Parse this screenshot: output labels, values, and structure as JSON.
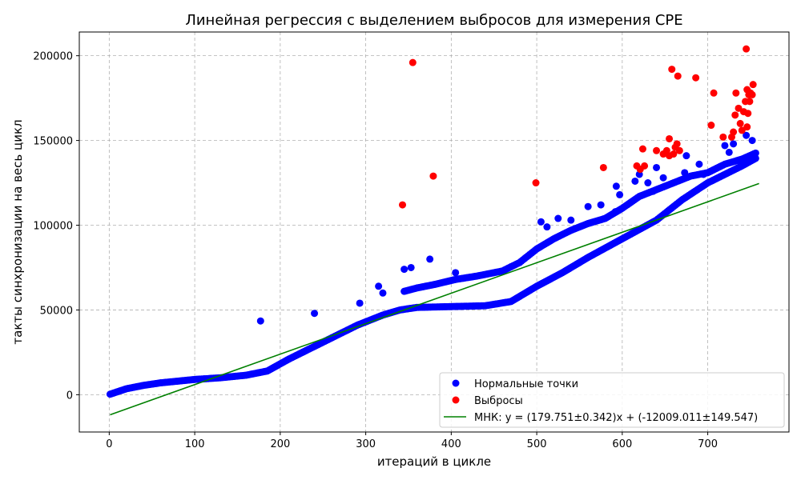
{
  "chart_data": {
    "type": "scatter",
    "title": "Линейная регрессия с выделением выбросов для измерения CPE",
    "xlabel": "итераций в цикле",
    "ylabel": "такты синхронизации на весь цикл",
    "xlim": [
      -35,
      795
    ],
    "ylim": [
      -22000,
      214000
    ],
    "xticks": [
      0,
      100,
      200,
      300,
      400,
      500,
      600,
      700
    ],
    "yticks": [
      0,
      50000,
      100000,
      150000,
      200000
    ],
    "grid": true,
    "legend_position": "bottom-right",
    "series": [
      {
        "name": "Нормальные точки",
        "color": "#0000ff",
        "marker": "circle",
        "segments": [
          [
            [
              1,
              300
            ],
            [
              20,
              3500
            ],
            [
              40,
              5500
            ],
            [
              60,
              7000
            ],
            [
              80,
              8000
            ],
            [
              100,
              9000
            ],
            [
              130,
              10000
            ],
            [
              160,
              11500
            ],
            [
              185,
              14000
            ],
            [
              210,
              21000
            ],
            [
              250,
              31000
            ],
            [
              290,
              41000
            ],
            [
              320,
              47000
            ],
            [
              340,
              50000
            ],
            [
              360,
              51500
            ],
            [
              400,
              52000
            ],
            [
              440,
              52500
            ],
            [
              470,
              55000
            ],
            [
              500,
              64000
            ],
            [
              530,
              72000
            ],
            [
              560,
              81000
            ],
            [
              600,
              92000
            ],
            [
              640,
              103000
            ],
            [
              670,
              115000
            ],
            [
              700,
              125000
            ],
            [
              740,
              135000
            ],
            [
              758,
              140000
            ]
          ],
          [
            [
              345,
              61000
            ],
            [
              360,
              63000
            ],
            [
              380,
              65000
            ],
            [
              405,
              68000
            ],
            [
              430,
              70000
            ],
            [
              460,
              73000
            ],
            [
              480,
              78000
            ],
            [
              500,
              86000
            ],
            [
              520,
              92000
            ],
            [
              540,
              97000
            ],
            [
              560,
              101000
            ],
            [
              580,
              104000
            ],
            [
              600,
              110000
            ],
            [
              620,
              117000
            ],
            [
              640,
              121000
            ],
            [
              660,
              125000
            ],
            [
              680,
              129000
            ],
            [
              700,
              131000
            ],
            [
              720,
              136000
            ],
            [
              740,
              139000
            ],
            [
              758,
              143000
            ]
          ]
        ],
        "points": [
          [
            177,
            43500
          ],
          [
            240,
            48000
          ],
          [
            293,
            54000
          ],
          [
            315,
            64000
          ],
          [
            320,
            60000
          ],
          [
            345,
            74000
          ],
          [
            353,
            75000
          ],
          [
            375,
            80000
          ],
          [
            405,
            72000
          ],
          [
            505,
            102000
          ],
          [
            512,
            99000
          ],
          [
            525,
            104000
          ],
          [
            540,
            103000
          ],
          [
            560,
            111000
          ],
          [
            575,
            112000
          ],
          [
            592,
            108000
          ],
          [
            593,
            123000
          ],
          [
            597,
            118000
          ],
          [
            615,
            126000
          ],
          [
            620,
            130000
          ],
          [
            630,
            125000
          ],
          [
            636,
            120000
          ],
          [
            640,
            134000
          ],
          [
            648,
            128000
          ],
          [
            673,
            131000
          ],
          [
            675,
            141000
          ],
          [
            690,
            136000
          ],
          [
            695,
            130000
          ],
          [
            720,
            147000
          ],
          [
            725,
            143000
          ],
          [
            730,
            148000
          ],
          [
            745,
            153000
          ],
          [
            752,
            150000
          ]
        ]
      },
      {
        "name": "Выбросы",
        "color": "#ff0000",
        "marker": "circle",
        "points": [
          [
            343,
            112000
          ],
          [
            355,
            196000
          ],
          [
            379,
            129000
          ],
          [
            499,
            125000
          ],
          [
            578,
            134000
          ],
          [
            617,
            135000
          ],
          [
            621,
            133000
          ],
          [
            624,
            145000
          ],
          [
            626,
            135000
          ],
          [
            640,
            144000
          ],
          [
            648,
            142000
          ],
          [
            652,
            144000
          ],
          [
            655,
            141000
          ],
          [
            655,
            151000
          ],
          [
            658,
            192000
          ],
          [
            660,
            142000
          ],
          [
            662,
            146000
          ],
          [
            664,
            148000
          ],
          [
            665,
            188000
          ],
          [
            667,
            144000
          ],
          [
            686,
            187000
          ],
          [
            704,
            159000
          ],
          [
            707,
            178000
          ],
          [
            718,
            152000
          ],
          [
            728,
            152000
          ],
          [
            730,
            155000
          ],
          [
            732,
            165000
          ],
          [
            733,
            178000
          ],
          [
            736,
            169000
          ],
          [
            738,
            160000
          ],
          [
            740,
            156000
          ],
          [
            742,
            167000
          ],
          [
            744,
            173000
          ],
          [
            745,
            204000
          ],
          [
            746,
            158000
          ],
          [
            746,
            180000
          ],
          [
            747,
            166000
          ],
          [
            748,
            177000
          ],
          [
            749,
            173000
          ],
          [
            750,
            178000
          ],
          [
            752,
            177000
          ],
          [
            753,
            183000
          ]
        ]
      },
      {
        "name": "МНК: y = (179.751±0.342)x + (-12009.011±149.547)",
        "type": "line",
        "color": "#008000",
        "x": [
          1,
          760
        ],
        "y": [
          -11829.26,
          124601.75
        ]
      }
    ]
  }
}
